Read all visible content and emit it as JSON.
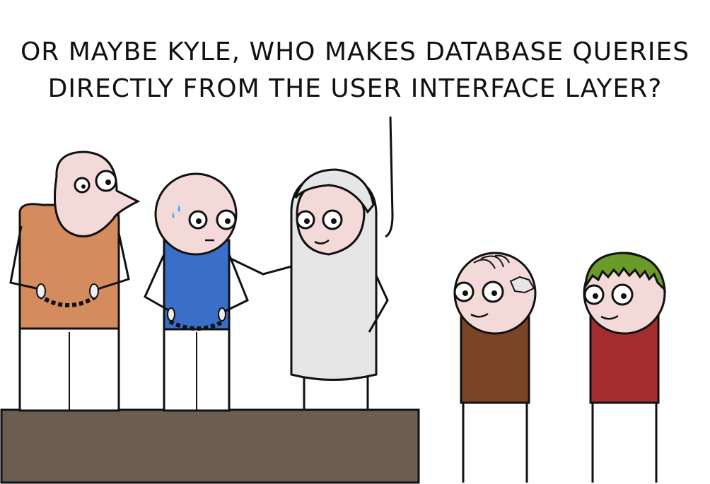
{
  "caption": {
    "line1": "OR MAYBE KYLE, WHO MAKES DATABASE QUERIES",
    "line2": "DIRECTLY FROM THE USER INTERFACE LAYER?"
  },
  "colors": {
    "skin": "#f4d9d9",
    "orange_shirt": "#d48b5e",
    "blue_shirt": "#3a6fc8",
    "white_robe": "#e6e6e6",
    "brown_shirt": "#7a4526",
    "red_shirt": "#a42e2f",
    "green_hair": "#6a9a2a",
    "podium": "#6b5d52",
    "sweat": "#39b6ff"
  },
  "characters": [
    {
      "id": "prisoner-orange",
      "icon": "handcuffed-prisoner"
    },
    {
      "id": "prisoner-blue",
      "icon": "handcuffed-nervous-prisoner"
    },
    {
      "id": "judge",
      "icon": "judge-robe"
    },
    {
      "id": "kyle",
      "icon": "scarred-kid"
    },
    {
      "id": "green-hair-kid",
      "icon": "green-haired-kid"
    }
  ]
}
